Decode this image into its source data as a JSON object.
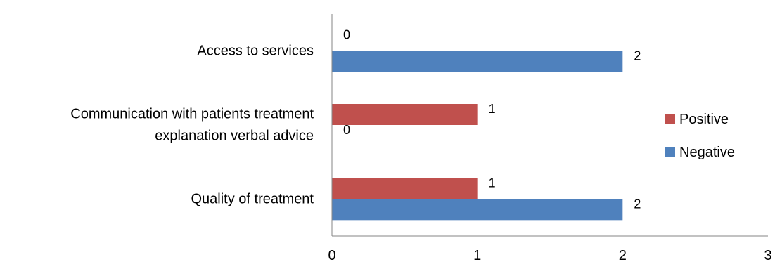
{
  "chart_data": {
    "type": "bar",
    "orientation": "horizontal",
    "title": "",
    "xlabel": "",
    "ylabel": "",
    "categories": [
      [
        "Access to services"
      ],
      [
        "Communication with patients treatment",
        "explanation verbal advice"
      ],
      [
        "Quality of treatment"
      ]
    ],
    "series": [
      {
        "name": "Positive",
        "color": "#C0504D",
        "values": [
          0,
          1,
          1
        ]
      },
      {
        "name": "Negative",
        "color": "#4F81BD",
        "values": [
          2,
          0,
          2
        ]
      }
    ],
    "xlim": [
      0,
      3
    ],
    "xticks": [
      0,
      1,
      2,
      3
    ],
    "grid": false,
    "legend_position": "right",
    "data_labels": true
  }
}
